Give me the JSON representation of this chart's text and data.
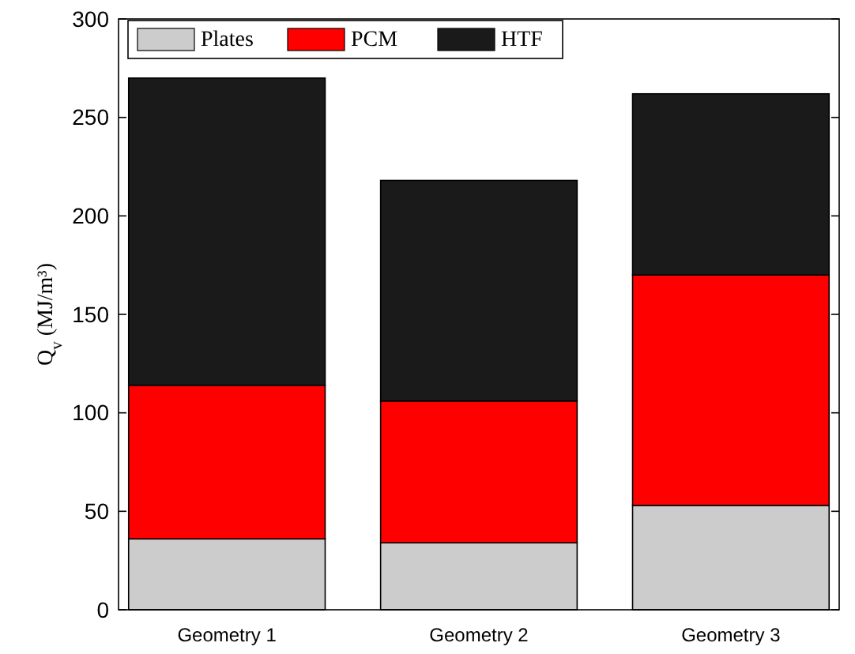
{
  "chart_data": {
    "type": "bar",
    "stacked": true,
    "ylabel": "Q$_{v}$ (MJ/m³)",
    "categories": [
      "Geometry 1",
      "Geometry 2",
      "Geometry 3"
    ],
    "series": [
      {
        "name": "Plates",
        "color": "#cccccc",
        "values": [
          36,
          34,
          53
        ]
      },
      {
        "name": "PCM",
        "color": "#ff0000",
        "values": [
          78,
          72,
          117
        ]
      },
      {
        "name": "HTF",
        "color": "#1a1a1a",
        "values": [
          156,
          112,
          92
        ]
      }
    ],
    "ylim": [
      0,
      300
    ],
    "yticks": [
      0,
      50,
      100,
      150,
      200,
      250,
      300
    ],
    "legend": "top left",
    "grid": false
  }
}
